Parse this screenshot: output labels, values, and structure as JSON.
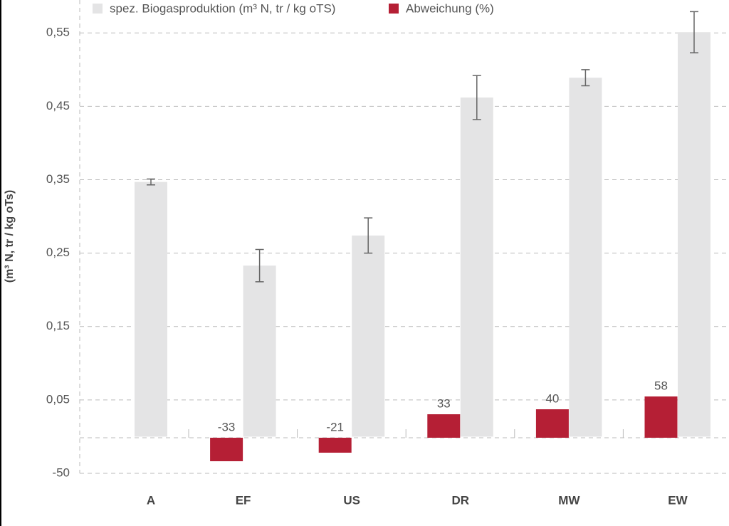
{
  "chart_data": {
    "type": "bar",
    "y_label": "(m³ N, tr / kg oTs)",
    "categories": [
      "A",
      "EF",
      "US",
      "DR",
      "MW",
      "EW"
    ],
    "series": [
      {
        "name": "spez. Biogasproduktion (m³ N, tr / kg oTS)",
        "color": "#e4e4e5",
        "values": [
          0.347,
          0.233,
          0.274,
          0.462,
          0.489,
          0.551
        ],
        "errors": [
          0.004,
          0.022,
          0.024,
          0.03,
          0.011,
          0.028
        ]
      },
      {
        "name": "Abweichung (%)",
        "color": "#b51f35",
        "axis": "y2",
        "values": [
          null,
          -33,
          -21,
          33,
          40,
          58
        ]
      }
    ],
    "ylim": [
      -0.05,
      0.59
    ],
    "yticks": [
      {
        "value": 0.05,
        "label": "0,05"
      },
      {
        "value": 0.15,
        "label": "0,15"
      },
      {
        "value": 0.25,
        "label": "0,25"
      },
      {
        "value": 0.35,
        "label": "0,35"
      },
      {
        "value": 0.45,
        "label": "0,45"
      },
      {
        "value": 0.55,
        "label": "0,55"
      }
    ],
    "y2lim": [
      -50,
      610
    ],
    "y2ticks": [
      -50
    ],
    "grid": true
  }
}
